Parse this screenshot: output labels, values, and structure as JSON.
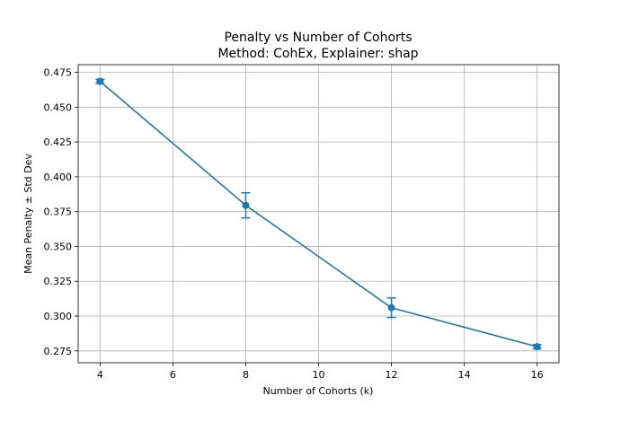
{
  "chart_data": {
    "type": "line",
    "title": "Penalty vs Number of Cohorts",
    "subtitle": "Method: CohEx, Explainer: shap",
    "xlabel": "Number of Cohorts (k)",
    "ylabel": "Mean Penalty ± Std Dev",
    "xlim": [
      3.4,
      16.6
    ],
    "ylim": [
      0.2665,
      0.4805
    ],
    "xticks": [
      4,
      6,
      8,
      10,
      12,
      14,
      16
    ],
    "yticks": [
      0.275,
      0.3,
      0.325,
      0.35,
      0.375,
      0.4,
      0.425,
      0.45,
      0.475
    ],
    "yticks_labels": [
      "0.275",
      "0.300",
      "0.325",
      "0.350",
      "0.375",
      "0.400",
      "0.425",
      "0.450",
      "0.475"
    ],
    "grid": true,
    "series": [
      {
        "color": "#1f77b4",
        "x": [
          4,
          8,
          12,
          16
        ],
        "y": [
          0.4685,
          0.3795,
          0.306,
          0.278
        ],
        "err": [
          0.0015,
          0.009,
          0.007,
          0.0015
        ]
      }
    ]
  }
}
